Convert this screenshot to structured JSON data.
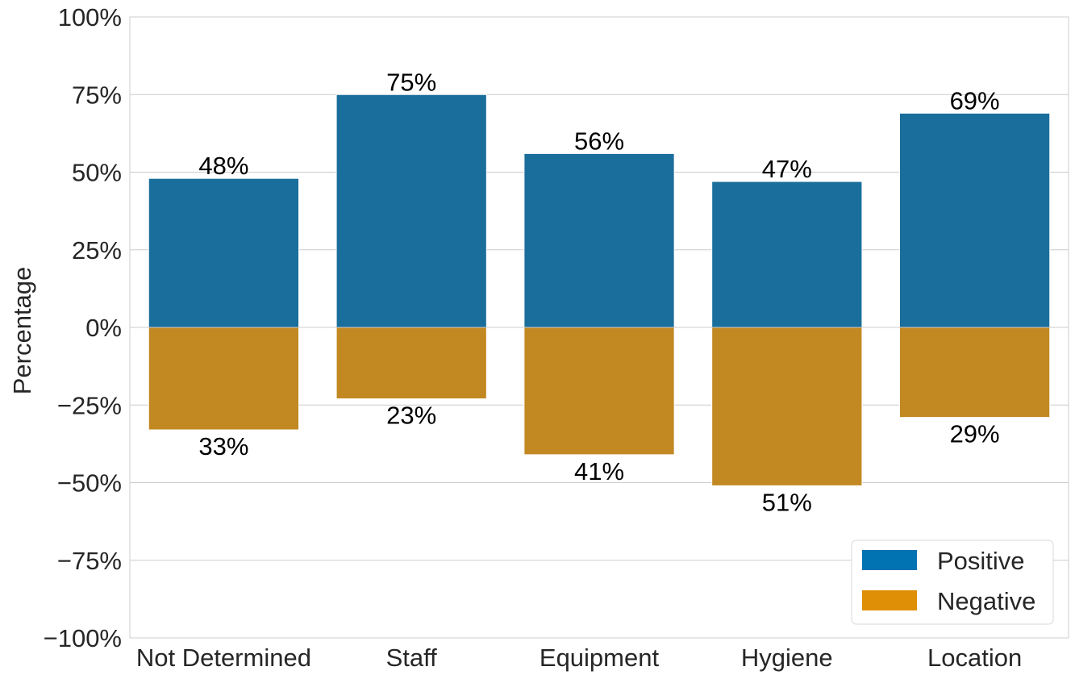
{
  "chart_data": {
    "type": "bar",
    "categories": [
      "Not Determined",
      "Staff",
      "Equipment",
      "Hygiene",
      "Location"
    ],
    "series": [
      {
        "name": "Positive",
        "values": [
          48,
          75,
          56,
          47,
          69
        ],
        "labels": [
          "48%",
          "75%",
          "56%",
          "47%",
          "69%"
        ],
        "color": "#1a6e9c"
      },
      {
        "name": "Negative",
        "values": [
          -33,
          -23,
          -41,
          -51,
          -29
        ],
        "labels": [
          "33%",
          "23%",
          "41%",
          "51%",
          "29%"
        ],
        "color": "#c28821"
      }
    ],
    "legend_colors": {
      "Positive": "#0173b2",
      "Negative": "#de8f05"
    },
    "ylabel": "Percentage",
    "ylim": [
      -100,
      100
    ],
    "yticks": [
      -100,
      -75,
      -50,
      -25,
      0,
      25,
      50,
      75,
      100
    ],
    "ytick_labels": [
      "−100%",
      "−75%",
      "−50%",
      "−25%",
      "0%",
      "25%",
      "50%",
      "75%",
      "100%"
    ],
    "grid": true,
    "legend_position": "lower-right"
  }
}
